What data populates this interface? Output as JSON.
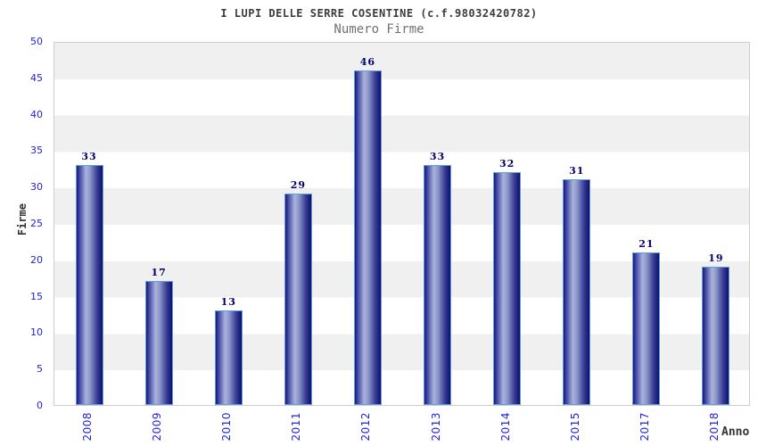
{
  "header": {
    "title": "I LUPI DELLE SERRE COSENTINE (c.f.98032420782)",
    "subtitle": "Numero Firme"
  },
  "chart_data": {
    "type": "bar",
    "title": "I LUPI DELLE SERRE COSENTINE (c.f.98032420782)",
    "subtitle": "Numero Firme",
    "xlabel": "Anno",
    "ylabel": "Firme",
    "categories": [
      "2008",
      "2009",
      "2010",
      "2011",
      "2012",
      "2013",
      "2014",
      "2015",
      "2017",
      "2018"
    ],
    "values": [
      33,
      17,
      13,
      29,
      46,
      33,
      32,
      31,
      21,
      19
    ],
    "ylim": [
      0,
      50
    ],
    "ytick_step": 5,
    "grid": "horizontal-bands-alternating",
    "legend": "none",
    "colors": {
      "tick_label": "#2222dd",
      "value_label": "#000072",
      "band_gray": "#f0f0f0",
      "band_white": "#ffffff",
      "plot_border": "#cccccc",
      "bar_border": "#5f9fdf",
      "bar_dark_edge": "#16167e",
      "bar_light_center": "#aab2dd",
      "bar_dark_right": "#0f0f6a",
      "title_text": "#3c3c3c",
      "subtitle_text": "#717171",
      "axis_title_text": "#333333"
    }
  }
}
